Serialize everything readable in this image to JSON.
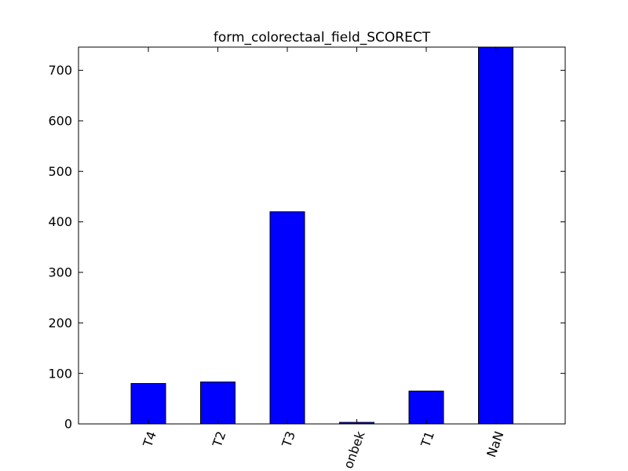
{
  "chart_data": {
    "type": "bar",
    "title": "form_colorectaal_field_SCORECT",
    "xlabel": "",
    "ylabel": "",
    "categories": [
      "T4",
      "T2",
      "T3",
      "onbek",
      "T1",
      "NaN"
    ],
    "values": [
      80,
      83,
      420,
      3,
      65,
      746
    ],
    "ylim": [
      0,
      746
    ],
    "yticks": [
      0,
      100,
      200,
      300,
      400,
      500,
      600,
      700
    ],
    "bar_color": "#0000ff",
    "edge_color": "#000000",
    "grid": false,
    "legend": "none",
    "xtick_rotation": "70deg"
  }
}
